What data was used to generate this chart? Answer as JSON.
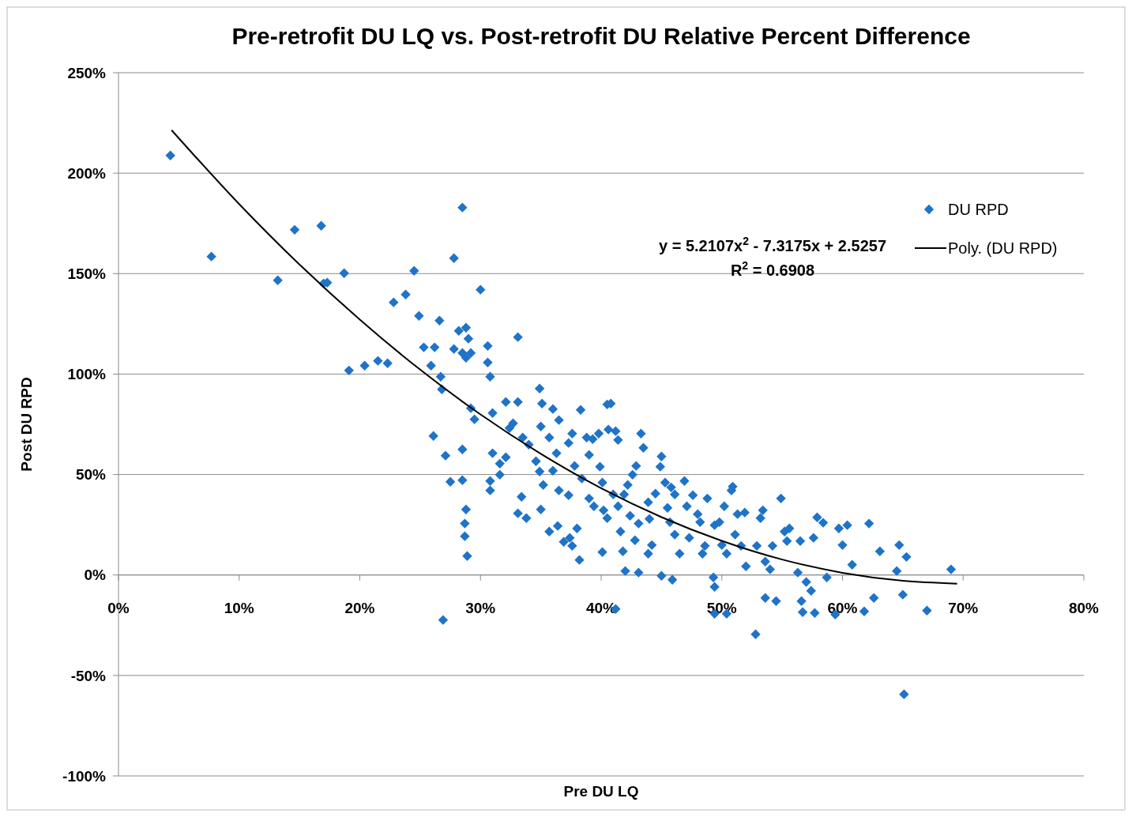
{
  "chart_data": {
    "type": "scatter",
    "title": "Pre-retrofit DU LQ vs. Post-retrofit DU Relative Percent Difference",
    "xlabel": "Pre DU LQ",
    "ylabel": "Post DU RPD",
    "xlim": [
      0,
      80
    ],
    "ylim": [
      -100,
      250
    ],
    "xticks": [
      {
        "value": 0,
        "label": "0%"
      },
      {
        "value": 10,
        "label": "10%"
      },
      {
        "value": 20,
        "label": "20%"
      },
      {
        "value": 30,
        "label": "30%"
      },
      {
        "value": 40,
        "label": "40%"
      },
      {
        "value": 50,
        "label": "50%"
      },
      {
        "value": 60,
        "label": "60%"
      },
      {
        "value": 70,
        "label": "70%"
      },
      {
        "value": 80,
        "label": "80%"
      }
    ],
    "yticks": [
      {
        "value": -100,
        "label": "-100%"
      },
      {
        "value": -50,
        "label": "-50%"
      },
      {
        "value": 0,
        "label": "0%"
      },
      {
        "value": 50,
        "label": "50%"
      },
      {
        "value": 100,
        "label": "100%"
      },
      {
        "value": 150,
        "label": "150%"
      },
      {
        "value": 200,
        "label": "200%"
      },
      {
        "value": 250,
        "label": "250%"
      }
    ],
    "grid": "y",
    "legend": "top right",
    "annotations": [
      "y = 5.2107x$^{2}$ - 7.3175x + 2.5257",
      "R$^{2}$ = 0.6908"
    ],
    "series": [
      {
        "name": "DU RPD",
        "marker": "diamond",
        "color": "#1f73c8",
        "x": [
          4.3,
          7.7,
          13.2,
          14.6,
          16.8,
          17.0,
          17.3,
          18.7,
          19.1,
          20.4,
          21.5,
          22.3,
          22.8,
          23.8,
          24.5,
          24.9,
          25.3,
          26.2,
          25.9,
          26.6,
          26.7,
          26.8,
          26.1,
          27.1,
          27.5,
          28.5,
          27.8,
          28.5,
          27.8,
          28.2,
          28.5,
          28.8,
          29.0,
          28.8,
          29.2,
          28.5,
          28.8,
          28.7,
          28.7,
          28.9,
          26.9,
          29.2,
          29.5,
          30.0,
          30.6,
          30.6,
          30.8,
          31.0,
          31.0,
          30.8,
          30.8,
          31.6,
          32.1,
          31.6,
          32.1,
          32.4,
          33.1,
          33.1,
          32.7,
          33.4,
          33.1,
          33.8,
          34.0,
          33.5,
          34.9,
          35.1,
          35.0,
          34.6,
          34.9,
          35.2,
          35.0,
          35.7,
          35.7,
          36.0,
          36.3,
          36.5,
          36.0,
          36.5,
          36.4,
          36.9,
          37.3,
          37.3,
          37.6,
          37.8,
          37.4,
          38.0,
          37.6,
          38.2,
          38.3,
          38.8,
          39.0,
          38.4,
          39.0,
          39.4,
          39.3,
          39.8,
          39.9,
          40.1,
          40.2,
          40.5,
          40.1,
          40.5,
          40.8,
          40.6,
          41.2,
          41.4,
          41.0,
          41.4,
          41.6,
          41.2,
          41.8,
          42.0,
          42.2,
          41.9,
          42.6,
          42.4,
          42.9,
          43.1,
          42.8,
          43.1,
          43.3,
          43.5,
          43.9,
          44.0,
          43.9,
          44.2,
          44.5,
          44.9,
          45.0,
          45.0,
          45.3,
          45.5,
          45.9,
          45.8,
          46.1,
          45.7,
          46.1,
          46.5,
          46.9,
          47.1,
          47.3,
          47.6,
          48.0,
          48.2,
          48.4,
          48.6,
          48.8,
          49.4,
          49.3,
          49.4,
          49.8,
          50.2,
          50.0,
          50.4,
          49.4,
          50.4,
          50.8,
          50.9,
          51.1,
          51.3,
          51.6,
          51.9,
          52.0,
          52.9,
          53.2,
          53.4,
          53.6,
          53.6,
          54.0,
          54.2,
          54.5,
          54.9,
          55.2,
          55.4,
          55.6,
          56.3,
          56.5,
          56.6,
          56.7,
          57.0,
          57.4,
          57.6,
          57.7,
          57.9,
          58.4,
          58.7,
          59.4,
          59.7,
          60.0,
          60.4,
          60.8,
          61.8,
          62.2,
          62.6,
          63.1,
          64.5,
          64.7,
          65.0,
          65.3,
          65.1,
          67.0,
          69.0,
          52.8
        ],
        "values": [
          208.8,
          158.5,
          146.7,
          171.8,
          173.8,
          145.1,
          145.5,
          150.2,
          101.8,
          104.2,
          106.6,
          105.4,
          135.7,
          139.6,
          151.4,
          129.0,
          113.3,
          113.3,
          104.2,
          126.6,
          98.7,
          92.4,
          69.2,
          59.4,
          46.4,
          47.2,
          112.5,
          110.5,
          157.7,
          121.5,
          182.9,
          123.1,
          117.6,
          108.1,
          110.5,
          62.5,
          32.6,
          25.6,
          19.3,
          9.4,
          -22.4,
          83.0,
          77.5,
          142.0,
          114.0,
          105.8,
          98.7,
          80.6,
          60.6,
          46.8,
          42.1,
          55.4,
          58.6,
          49.9,
          86.1,
          73.1,
          86.1,
          118.4,
          75.5,
          38.9,
          30.7,
          28.3,
          64.9,
          68.4,
          92.8,
          85.3,
          73.9,
          56.6,
          51.5,
          44.8,
          32.6,
          21.6,
          68.4,
          82.6,
          60.6,
          77.1,
          51.9,
          42.1,
          24.4,
          16.5,
          39.7,
          65.7,
          70.4,
          54.3,
          18.5,
          23.2,
          14.5,
          7.5,
          82.2,
          68.4,
          59.8,
          48.0,
          38.1,
          34.2,
          67.6,
          70.4,
          53.9,
          46.0,
          32.2,
          28.3,
          11.4,
          84.9,
          85.3,
          72.4,
          71.6,
          67.2,
          40.1,
          34.2,
          21.6,
          -16.9,
          11.8,
          2.0,
          44.8,
          40.1,
          49.9,
          29.5,
          54.3,
          25.6,
          17.3,
          1.2,
          70.4,
          63.3,
          36.2,
          27.9,
          10.6,
          14.9,
          40.5,
          53.9,
          59.0,
          -0.4,
          46.0,
          33.4,
          -2.4,
          43.6,
          40.1,
          26.3,
          20.1,
          10.6,
          46.8,
          34.2,
          18.5,
          39.7,
          30.3,
          26.3,
          10.6,
          14.5,
          38.1,
          24.8,
          -1.2,
          -5.9,
          26.3,
          34.2,
          14.9,
          10.6,
          -19.3,
          -19.3,
          42.1,
          44.0,
          20.1,
          30.3,
          14.5,
          31.1,
          4.3,
          14.5,
          28.3,
          32.2,
          6.7,
          -11.4,
          2.8,
          14.5,
          -13.0,
          38.1,
          21.6,
          16.9,
          23.2,
          1.2,
          16.9,
          -13.0,
          -18.5,
          -3.5,
          -7.9,
          18.5,
          -18.9,
          28.7,
          26.0,
          -1.2,
          -19.7,
          23.2,
          14.9,
          24.8,
          5.1,
          -18.1,
          25.6,
          -11.4,
          11.8,
          2.0,
          14.9,
          -9.8,
          9.0,
          -59.4,
          -17.7,
          2.8,
          -29.5
        ]
      },
      {
        "name": "Poly. (DU RPD)",
        "type": "line",
        "marker": "none",
        "color": "#000000",
        "line_style": "solid",
        "x": [
          4.4,
          10,
          15,
          20,
          25,
          30,
          35,
          40,
          45,
          50,
          55,
          60,
          65,
          69.5
        ],
        "values": [
          221.4,
          184.6,
          154.5,
          127.1,
          102.2,
          79.9,
          60.3,
          43.2,
          28.8,
          17.0,
          7.7,
          1.1,
          -2.9,
          -4.3
        ]
      }
    ]
  }
}
